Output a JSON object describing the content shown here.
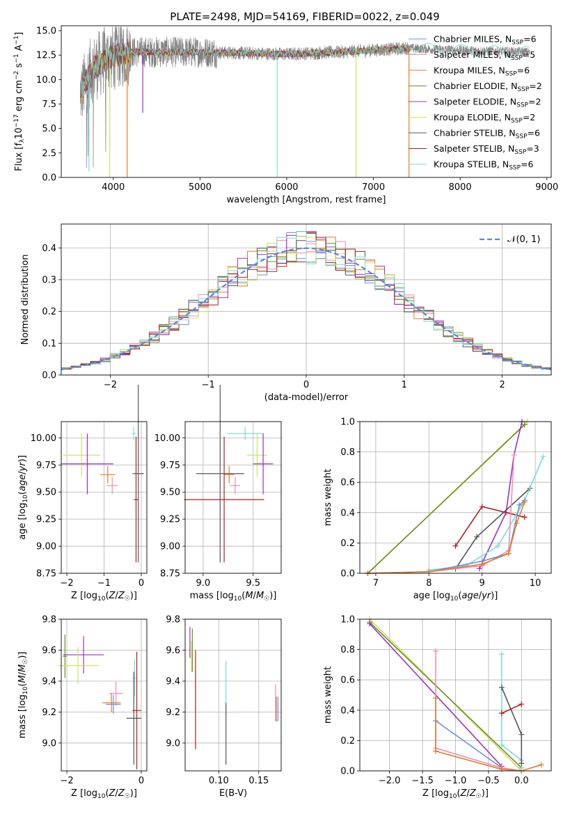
{
  "figure": {
    "title": "PLATE=2498, MJD=54169, FIBERID=0022, z=0.049"
  },
  "colors": {
    "chabrier_miles": "#6a8fd8",
    "salpeter_miles": "#f08cb0",
    "kroupa_miles": "#e07b2a",
    "chabrier_elodie": "#6b8e23",
    "salpeter_elodie": "#9b30b8",
    "kroupa_elodie": "#c8e65a",
    "chabrier_stelib": "#555555",
    "salpeter_stelib": "#b01e1e",
    "kroupa_stelib": "#7fd8d8",
    "gaussian": "#5b86d6"
  },
  "legend": {
    "spectrum_entries": [
      {
        "key": "chabrier_miles",
        "text": "Chabrier MILES, N",
        "sub": "SSP",
        "suffix": "=6"
      },
      {
        "key": "salpeter_miles",
        "text": "Salpeter MILES, N",
        "sub": "SSP",
        "suffix": "=5"
      },
      {
        "key": "kroupa_miles",
        "text": "Kroupa MILES, N",
        "sub": "SSP",
        "suffix": "=6"
      },
      {
        "key": "chabrier_elodie",
        "text": "Chabrier ELODIE, N",
        "sub": "SSP",
        "suffix": "=2"
      },
      {
        "key": "salpeter_elodie",
        "text": "Salpeter ELODIE, N",
        "sub": "SSP",
        "suffix": "=2"
      },
      {
        "key": "kroupa_elodie",
        "text": "Kroupa ELODIE, N",
        "sub": "SSP",
        "suffix": "=2"
      },
      {
        "key": "chabrier_stelib",
        "text": "Chabrier STELIB, N",
        "sub": "SSP",
        "suffix": "=6"
      },
      {
        "key": "salpeter_stelib",
        "text": "Salpeter STELIB, N",
        "sub": "SSP",
        "suffix": "=3"
      },
      {
        "key": "kroupa_stelib",
        "text": "Kroupa STELIB, N",
        "sub": "SSP",
        "suffix": "=6"
      }
    ],
    "hist_entry": "𝒩(0, 1)"
  },
  "chart_data": [
    {
      "id": "spectrum",
      "type": "line",
      "xlabel": "wavelength [Angstrom, rest frame]",
      "ylabel": "Flux [f_λ 10^-17 erg cm^-2 s^-1 A^-1]",
      "xlim": [
        3400,
        9050
      ],
      "ylim": [
        0,
        15.5
      ],
      "xticks": [
        4000,
        5000,
        6000,
        7000,
        8000,
        9000
      ],
      "yticks": [
        0.0,
        2.5,
        5.0,
        7.5,
        10.0,
        12.5,
        15.0
      ],
      "data_range": [
        3620,
        8800
      ],
      "model_range": [
        3620,
        7420
      ],
      "continuum": [
        [
          3620,
          8.5
        ],
        [
          3750,
          11.0
        ],
        [
          3950,
          12.3
        ],
        [
          4200,
          12.8
        ],
        [
          5000,
          12.8
        ],
        [
          6000,
          12.6
        ],
        [
          6600,
          12.8
        ],
        [
          7000,
          13.0
        ],
        [
          7400,
          13.2
        ],
        [
          8000,
          13.0
        ],
        [
          8800,
          12.8
        ]
      ],
      "spikes_down": [
        [
          4160,
          0.0
        ],
        [
          4340,
          6.6
        ],
        [
          5890,
          0.0
        ],
        [
          6800,
          0.0
        ],
        [
          7410,
          0.0
        ],
        [
          3960,
          0.0
        ],
        [
          3720,
          0.6
        ]
      ],
      "grid": false
    },
    {
      "id": "residual_hist",
      "type": "bar",
      "xlabel": "(data-model)/error",
      "ylabel": "Normed distribution",
      "xlim": [
        -2.5,
        2.5
      ],
      "ylim": [
        0,
        0.475
      ],
      "xticks": [
        -2,
        -1,
        0,
        1,
        2
      ],
      "yticks": [
        0.0,
        0.1,
        0.2,
        0.3,
        0.4
      ],
      "bin_width": 0.1,
      "gaussian": {
        "mu": 0,
        "sigma": 1
      },
      "grid": true
    },
    {
      "id": "age_vs_Z",
      "type": "scatter",
      "xlabel": "Z [log10(Z/Z☉)]",
      "ylabel": "age [log10(age/yr)]",
      "xlim": [
        -2.15,
        0.15
      ],
      "ylim": [
        8.75,
        10.15
      ],
      "xticks": [
        -2,
        -1,
        0
      ],
      "yticks": [
        8.75,
        9.0,
        9.25,
        9.5,
        9.75,
        10.0
      ],
      "points": [
        {
          "key": "kroupa_elodie",
          "x": -1.6,
          "xerr": 0.5,
          "y": 9.84,
          "yerr": 0.2
        },
        {
          "key": "salpeter_elodie",
          "x": -1.45,
          "xerr": 0.7,
          "y": 9.76,
          "yerr": 0.28
        },
        {
          "key": "kroupa_miles",
          "x": -0.9,
          "xerr": 0.2,
          "y": 9.66,
          "yerr": 0.08
        },
        {
          "key": "salpeter_miles",
          "x": -0.78,
          "xerr": 0.15,
          "y": 9.56,
          "yerr": 0.08
        },
        {
          "key": "kroupa_stelib",
          "x": -0.2,
          "xerr": 0.05,
          "y": 10.04,
          "yerr": 0.06
        },
        {
          "key": "chabrier_stelib",
          "x": -0.08,
          "xerr": 0.15,
          "y": 9.67,
          "yerr": 0.82
        },
        {
          "key": "salpeter_stelib",
          "x": -0.14,
          "xerr": 0.06,
          "y": 9.43,
          "yerr": 0.58
        }
      ],
      "grid": true
    },
    {
      "id": "age_vs_mass",
      "type": "scatter",
      "xlabel": "mass [log10(M/M☉)]",
      "ylabel": "",
      "xlim": [
        8.82,
        9.78
      ],
      "ylim": [
        8.75,
        10.15
      ],
      "xticks": [
        9.0,
        9.5
      ],
      "yticks": [
        8.75,
        9.0,
        9.25,
        9.5,
        9.75,
        10.0
      ],
      "points": [
        {
          "key": "kroupa_stelib",
          "x": 9.42,
          "xerr": 0.18,
          "y": 10.04,
          "yerr": 0.06
        },
        {
          "key": "kroupa_elodie",
          "x": 9.54,
          "xerr": 0.1,
          "y": 9.84,
          "yerr": 0.2
        },
        {
          "key": "salpeter_elodie",
          "x": 9.6,
          "xerr": 0.1,
          "y": 9.76,
          "yerr": 0.28
        },
        {
          "key": "kroupa_miles",
          "x": 9.26,
          "xerr": 0.05,
          "y": 9.66,
          "yerr": 0.08
        },
        {
          "key": "chabrier_stelib",
          "x": 9.17,
          "xerr": 0.24,
          "y": 9.67,
          "yerr": 0.82
        },
        {
          "key": "salpeter_miles",
          "x": 9.32,
          "xerr": 0.05,
          "y": 9.56,
          "yerr": 0.08
        },
        {
          "key": "salpeter_stelib",
          "x": 9.21,
          "xerr": 0.4,
          "y": 9.43,
          "yerr": 0.58
        }
      ],
      "grid": true
    },
    {
      "id": "massweight_vs_age",
      "type": "line",
      "xlabel": "age [log10(age/yr)]",
      "ylabel": "mass weight",
      "xlim": [
        6.7,
        10.3
      ],
      "ylim": [
        0,
        1
      ],
      "xticks": [
        7,
        8,
        9,
        10
      ],
      "yticks": [
        0.0,
        0.2,
        0.4,
        0.6,
        0.8,
        1.0
      ],
      "series": [
        {
          "key": "kroupa_elodie",
          "points": [
            [
              6.85,
              0.0
            ],
            [
              9.85,
              1.0
            ]
          ]
        },
        {
          "key": "chabrier_elodie",
          "points": [
            [
              6.85,
              0.0
            ],
            [
              9.8,
              0.98
            ]
          ]
        },
        {
          "key": "salpeter_elodie",
          "points": [
            [
              8.95,
              0.03
            ],
            [
              9.45,
              0.4
            ],
            [
              9.6,
              0.78
            ],
            [
              9.75,
              1.0
            ]
          ]
        },
        {
          "key": "salpeter_stelib",
          "points": [
            [
              8.5,
              0.18
            ],
            [
              9.0,
              0.44
            ],
            [
              9.8,
              0.37
            ]
          ]
        },
        {
          "key": "chabrier_stelib",
          "points": [
            [
              8.5,
              0.03
            ],
            [
              8.9,
              0.24
            ],
            [
              9.9,
              0.56
            ]
          ]
        },
        {
          "key": "kroupa_stelib",
          "points": [
            [
              8.0,
              0.02
            ],
            [
              8.7,
              0.05
            ],
            [
              9.3,
              0.18
            ],
            [
              9.8,
              0.48
            ],
            [
              10.15,
              0.77
            ]
          ]
        },
        {
          "key": "salpeter_miles",
          "points": [
            [
              6.85,
              0.0
            ],
            [
              8.0,
              0.01
            ],
            [
              9.0,
              0.05
            ],
            [
              9.5,
              0.15
            ],
            [
              9.6,
              0.78
            ]
          ]
        },
        {
          "key": "chabrier_miles",
          "points": [
            [
              6.85,
              0.0
            ],
            [
              8.0,
              0.01
            ],
            [
              9.0,
              0.08
            ],
            [
              9.5,
              0.13
            ],
            [
              9.7,
              0.45
            ],
            [
              9.8,
              0.48
            ]
          ]
        },
        {
          "key": "kroupa_miles",
          "points": [
            [
              6.85,
              0.0
            ],
            [
              8.0,
              0.01
            ],
            [
              9.0,
              0.06
            ],
            [
              9.5,
              0.13
            ],
            [
              9.65,
              0.33
            ],
            [
              9.8,
              0.47
            ]
          ]
        }
      ],
      "grid": true
    },
    {
      "id": "mass_vs_Z",
      "type": "scatter",
      "xlabel": "Z [log10(Z/Z☉)]",
      "ylabel": "mass [log10(M/M☉)]",
      "xlim": [
        -2.15,
        0.15
      ],
      "ylim": [
        8.82,
        9.8
      ],
      "xticks": [
        -2,
        0
      ],
      "yticks": [
        9.0,
        9.2,
        9.4,
        9.6,
        9.8
      ],
      "points": [
        {
          "key": "chabrier_elodie",
          "x": -2.05,
          "xerr": 0.05,
          "y": 9.56,
          "yerr": 0.14
        },
        {
          "key": "salpeter_elodie",
          "x": -1.55,
          "xerr": 0.55,
          "y": 9.57,
          "yerr": 0.12
        },
        {
          "key": "kroupa_elodie",
          "x": -1.7,
          "xerr": 0.55,
          "y": 9.5,
          "yerr": 0.12
        },
        {
          "key": "salpeter_miles",
          "x": -0.68,
          "xerr": 0.18,
          "y": 9.32,
          "yerr": 0.08
        },
        {
          "key": "kroupa_miles",
          "x": -0.8,
          "xerr": 0.25,
          "y": 9.26,
          "yerr": 0.06
        },
        {
          "key": "chabrier_miles",
          "x": -0.75,
          "xerr": 0.2,
          "y": 9.25,
          "yerr": 0.06
        },
        {
          "key": "kroupa_stelib",
          "x": -0.18,
          "xerr": 0.06,
          "y": 9.42,
          "yerr": 0.12
        },
        {
          "key": "chabrier_stelib",
          "x": -0.2,
          "xerr": 0.2,
          "y": 9.16,
          "yerr": 0.3
        },
        {
          "key": "salpeter_stelib",
          "x": -0.12,
          "xerr": 0.12,
          "y": 9.21,
          "yerr": 0.38
        }
      ],
      "grid": true
    },
    {
      "id": "mass_vs_ebv",
      "type": "scatter",
      "xlabel": "E(B-V)",
      "ylabel": "",
      "xlim": [
        0.058,
        0.178
      ],
      "ylim": [
        8.82,
        9.8
      ],
      "xticks": [
        0.1,
        0.15
      ],
      "yticks": [
        9.0,
        9.2,
        9.4,
        9.6,
        9.8
      ],
      "points": [
        {
          "key": "kroupa_elodie",
          "x": 0.066,
          "xerr": 0.0,
          "y": 9.56,
          "yerr": 0.1
        },
        {
          "key": "salpeter_elodie",
          "x": 0.064,
          "xerr": 0.0,
          "y": 9.65,
          "yerr": 0.1
        },
        {
          "key": "chabrier_elodie",
          "x": 0.067,
          "xerr": 0.0,
          "y": 9.6,
          "yerr": 0.14
        },
        {
          "key": "salpeter_stelib",
          "x": 0.071,
          "xerr": 0.0,
          "y": 9.28,
          "yerr": 0.32
        },
        {
          "key": "kroupa_stelib",
          "x": 0.109,
          "xerr": 0.0,
          "y": 9.35,
          "yerr": 0.18
        },
        {
          "key": "chabrier_stelib",
          "x": 0.109,
          "xerr": 0.0,
          "y": 9.06,
          "yerr": 0.2
        },
        {
          "key": "salpeter_miles",
          "x": 0.171,
          "xerr": 0.0,
          "y": 9.26,
          "yerr": 0.12
        },
        {
          "key": "kroupa_miles",
          "x": 0.172,
          "xerr": 0.0,
          "y": 9.22,
          "yerr": 0.08
        },
        {
          "key": "chabrier_miles",
          "x": 0.174,
          "xerr": 0.0,
          "y": 9.22,
          "yerr": 0.08
        }
      ],
      "grid": true
    },
    {
      "id": "massweight_vs_Z",
      "type": "line",
      "xlabel": "Z [log10(Z/Z☉)]",
      "ylabel": "mass weight",
      "xlim": [
        -2.45,
        0.45
      ],
      "ylim": [
        0,
        1
      ],
      "xticks": [
        -2.0,
        -1.5,
        -1.0,
        -0.5,
        0.0
      ],
      "yticks": [
        0.0,
        0.2,
        0.4,
        0.6,
        0.8,
        1.0
      ],
      "series": [
        {
          "key": "kroupa_elodie",
          "points": [
            [
              -2.3,
              1.0
            ],
            [
              0.0,
              0.0
            ]
          ]
        },
        {
          "key": "chabrier_elodie",
          "points": [
            [
              -2.3,
              0.98
            ],
            [
              0.0,
              0.02
            ]
          ]
        },
        {
          "key": "salpeter_elodie",
          "points": [
            [
              -2.3,
              0.97
            ],
            [
              -0.3,
              0.03
            ]
          ]
        },
        {
          "key": "chabrier_miles",
          "points": [
            [
              -1.3,
              0.33
            ],
            [
              -0.3,
              0.02
            ],
            [
              0.0,
              0.0
            ]
          ]
        },
        {
          "key": "salpeter_miles",
          "points": [
            [
              -1.3,
              0.79
            ],
            [
              -1.3,
              0.15
            ],
            [
              -0.3,
              0.02
            ],
            [
              0.0,
              0.0
            ]
          ]
        },
        {
          "key": "kroupa_miles",
          "points": [
            [
              -1.3,
              0.48
            ],
            [
              -1.3,
              0.13
            ],
            [
              -0.3,
              0.01
            ],
            [
              0.0,
              0.0
            ],
            [
              0.3,
              0.04
            ]
          ]
        },
        {
          "key": "kroupa_stelib",
          "points": [
            [
              -0.3,
              0.77
            ],
            [
              -0.3,
              0.17
            ],
            [
              0.0,
              0.07
            ],
            [
              0.0,
              0.02
            ]
          ]
        },
        {
          "key": "chabrier_stelib",
          "points": [
            [
              -0.3,
              0.55
            ],
            [
              0.0,
              0.24
            ],
            [
              0.0,
              0.05
            ]
          ]
        },
        {
          "key": "salpeter_stelib",
          "points": [
            [
              -0.3,
              0.38
            ],
            [
              0.0,
              0.44
            ]
          ]
        }
      ],
      "grid": true
    }
  ]
}
